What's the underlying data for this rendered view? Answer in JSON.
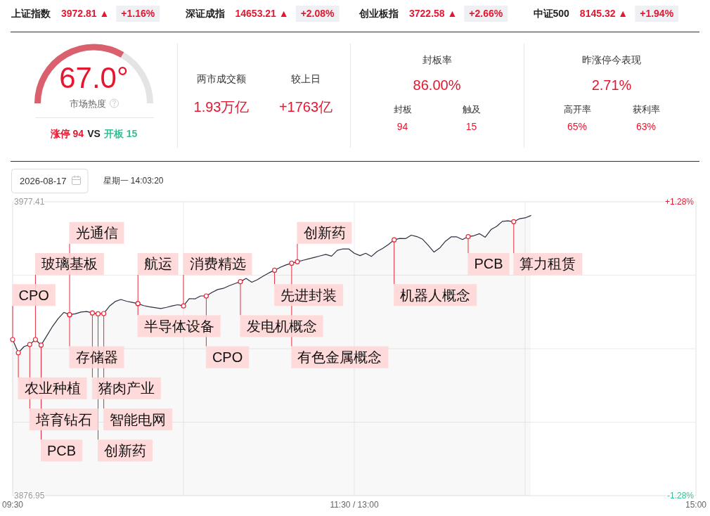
{
  "chart_data": [
    {
      "type": "other",
      "annotations": [
        "上证指数",
        "3972.81 ▲",
        "+1.16%",
        "深证成指",
        "14653.21 ▲",
        "+2.08%",
        "创业板指",
        "3722.58 ▲",
        "+2.66%",
        "中证500",
        "8145.32 ▲",
        "+1.94%"
      ]
    },
    {
      "type": "donut",
      "categories": [
        null,
        null
      ],
      "values": [
        67,
        33
      ],
      "colors": [
        "#d9606c",
        "#e4e4e4"
      ],
      "annotations": [
        "67.0°",
        "市场热度",
        "涨停 94",
        "VS",
        "开板 15"
      ]
    },
    {
      "type": "other",
      "annotations": [
        "两市成交额",
        "1.93万亿",
        "较上日",
        "+1763亿"
      ]
    },
    {
      "type": "other",
      "annotations": [
        "封板率",
        "86.00%",
        "封板",
        "94",
        "触及",
        "15"
      ]
    },
    {
      "type": "other",
      "annotations": [
        "昨涨停今表现",
        "2.71%",
        "高开率",
        "65%",
        "获利率",
        "63%"
      ]
    },
    {
      "type": "area",
      "grid": true,
      "categories": [
        "09:30",
        null,
        null,
        null,
        null,
        null,
        null,
        null,
        null,
        null,
        null,
        null,
        null,
        null,
        null,
        null,
        null,
        null,
        null,
        null,
        null,
        null,
        null,
        null,
        null,
        null,
        null,
        null,
        null,
        null,
        null,
        null,
        null,
        null,
        null,
        null,
        null,
        null,
        null,
        null,
        null,
        null,
        null,
        null,
        null,
        null,
        null,
        null,
        null,
        null,
        null,
        null,
        null,
        null,
        null,
        null,
        null,
        null,
        null,
        null,
        "11:30 / 13:00",
        null,
        null,
        null,
        null,
        null,
        null,
        null,
        null,
        null,
        null,
        null,
        null,
        null,
        null,
        null,
        null,
        null,
        null,
        null,
        null,
        null,
        null,
        null,
        null,
        null,
        null,
        null,
        null,
        null,
        null,
        null,
        null,
        null,
        null,
        null,
        null,
        null,
        null,
        null,
        null,
        null,
        null,
        null,
        null,
        null,
        null,
        null,
        null,
        null,
        null,
        null,
        null,
        null,
        null,
        null,
        null,
        null,
        null,
        null,
        "15:00"
      ],
      "ylim": [
        3876.95,
        3977.41
      ],
      "yticks": [
        3876.95,
        {
          "value": 3902.07,
          "label": null
        },
        {
          "value": 3927.18,
          "label": null
        },
        {
          "value": 3952.3,
          "label": null
        },
        3977.41
      ],
      "y2lim": [
        -1.28,
        1.28
      ],
      "y2ticks": [
        {
          "value": -1.28,
          "label": "-1.28%"
        },
        {
          "value": 1.28,
          "label": "+1.28%"
        }
      ],
      "series": [
        {
          "type": "area",
          "color": "#2e2e40",
          "values": [
            3930.3,
            3925.8,
            3927.9,
            3928.6,
            3930.3,
            3928.4,
            3931.6,
            3934.8,
            3937.5,
            3939.6,
            3938.8,
            3939.1,
            3939.7,
            3939.9,
            3939.4,
            3939.1,
            3939.2,
            3941.7,
            3943.3,
            3944.0,
            3943.4,
            3943.0,
            3942.6,
            3941.9,
            3941.5,
            3941.2,
            3940.9,
            3941.3,
            3941.8,
            3942.2,
            3941.8,
            3944.3,
            3944.2,
            3945.2,
            3945.2,
            3946.4,
            3947.4,
            3947.8,
            3948.7,
            3949.4,
            3950.1,
            3951.2,
            3949.9,
            3950.8,
            3952.0,
            3953.1,
            3954.0,
            3955.0,
            3955.8,
            3956.4,
            3956.9,
            3957.4,
            3957.9,
            3958.4,
            3958.9,
            3959.4,
            3958.8,
            3960.8,
            3961.3,
            3961.3,
            3959.8,
            3959.0,
            3959.8,
            3958.7,
            3960.4,
            3961.5,
            3962.8,
            3964.4,
            3964.9,
            3964.8,
            3966.0,
            3965.5,
            3964.6,
            3962.5,
            3960.2,
            3961.6,
            3963.9,
            3965.4,
            3965.4,
            3964.5,
            3965.5,
            3965.8,
            3966.5,
            3965.3,
            3967.9,
            3969.0,
            3970.7,
            3970.9,
            3970.6,
            3971.6,
            3971.9,
            3972.7,
            null,
            null,
            null,
            null,
            null,
            null,
            null,
            null,
            null,
            null,
            null,
            null,
            null,
            null,
            null,
            null,
            null,
            null,
            null,
            null,
            null,
            null,
            null,
            null,
            null,
            null,
            null,
            null,
            null
          ]
        },
        {
          "type": "scatter",
          "color": "#e8283a",
          "marker": "circle",
          "values": [
            3930.3,
            3925.8,
            null,
            3928.6,
            3930.3,
            3928.4,
            null,
            null,
            null,
            null,
            3938.8,
            null,
            null,
            null,
            3939.4,
            3939.1,
            3939.2,
            null,
            null,
            null,
            null,
            null,
            3942.6,
            null,
            null,
            null,
            null,
            null,
            null,
            null,
            3941.8,
            null,
            null,
            null,
            3945.2,
            null,
            null,
            null,
            null,
            null,
            3950.1,
            null,
            null,
            null,
            null,
            null,
            3954.0,
            null,
            null,
            3956.4,
            3956.9,
            null,
            null,
            null,
            null,
            null,
            null,
            null,
            null,
            null,
            null,
            null,
            null,
            null,
            null,
            null,
            null,
            3964.4,
            null,
            null,
            null,
            null,
            null,
            null,
            null,
            null,
            null,
            null,
            null,
            null,
            3965.5,
            null,
            null,
            null,
            null,
            null,
            null,
            null,
            3970.6,
            null,
            null,
            null,
            null,
            null,
            null,
            null,
            null,
            null,
            null,
            null,
            null,
            null,
            null,
            null,
            null,
            null,
            null,
            null,
            null,
            null,
            null,
            null,
            null,
            null,
            null,
            null,
            null,
            null,
            null,
            null,
            null
          ],
          "value_labels": [
            "CPO",
            "农业种植",
            null,
            "培育钻石",
            "玻璃基板",
            "PCB",
            null,
            null,
            null,
            null,
            "存储器",
            null,
            null,
            null,
            "猪肉产业",
            "创新药",
            "智能电网",
            null,
            null,
            null,
            null,
            null,
            "半导体设备",
            null,
            null,
            null,
            null,
            null,
            null,
            null,
            "消费精选",
            null,
            null,
            null,
            "CPO",
            null,
            null,
            null,
            null,
            null,
            "发电机概念",
            null,
            null,
            null,
            null,
            null,
            "先进封装",
            null,
            null,
            "有色金属概念",
            "创新药",
            null,
            null,
            null,
            null,
            null,
            null,
            null,
            null,
            null,
            null,
            null,
            null,
            null,
            null,
            null,
            null,
            "机器人概念",
            null,
            null,
            null,
            null,
            null,
            null,
            null,
            null,
            null,
            null,
            null,
            null,
            "PCB",
            null,
            null,
            null,
            null,
            null,
            null,
            null,
            "算力租赁",
            null,
            null,
            null,
            null,
            null,
            null,
            null,
            null,
            null,
            null,
            null,
            null,
            null,
            null,
            null,
            null,
            null,
            null,
            null,
            null,
            null,
            null,
            null,
            null,
            null,
            null,
            null,
            null,
            null,
            null,
            null,
            null
          ]
        },
        {
          "type": "scatter",
          "color": "#e8283a",
          "marker": "circle",
          "values": [
            null,
            null,
            null,
            null,
            null,
            null,
            null,
            null,
            null,
            null,
            3938.8,
            null,
            null,
            null,
            null,
            null,
            null,
            null,
            null,
            null,
            null,
            null,
            3942.6,
            null,
            null,
            null,
            null,
            null,
            null,
            null,
            null,
            null,
            null,
            null,
            null,
            null,
            null,
            null,
            null,
            null,
            null,
            null,
            null,
            null,
            null,
            null,
            null,
            null,
            null,
            null,
            null,
            null,
            null,
            null,
            null,
            null,
            null,
            null,
            null,
            null,
            null,
            null,
            null,
            null,
            null,
            null,
            null,
            null,
            null,
            null,
            null,
            null,
            null,
            null,
            null,
            null,
            null,
            null,
            null,
            null,
            null,
            null,
            null,
            null,
            null,
            null,
            null,
            null,
            null,
            null,
            null,
            null,
            null,
            null,
            null,
            null,
            null,
            null,
            null,
            null,
            null,
            null,
            null,
            null,
            null,
            null,
            null,
            null,
            null,
            null,
            null,
            null,
            null,
            null,
            null,
            null,
            null,
            null,
            null,
            null,
            null
          ],
          "value_labels": [
            null,
            null,
            null,
            null,
            null,
            null,
            null,
            null,
            null,
            null,
            "光通信",
            null,
            null,
            null,
            null,
            null,
            null,
            null,
            null,
            null,
            null,
            null,
            "航运",
            null,
            null,
            null,
            null,
            null,
            null,
            null,
            null,
            null,
            null,
            null,
            null,
            null,
            null,
            null,
            null,
            null,
            null,
            null,
            null,
            null,
            null,
            null,
            null,
            null,
            null,
            null,
            null,
            null,
            null,
            null,
            null,
            null,
            null,
            null,
            null,
            null,
            null,
            null,
            null,
            null,
            null,
            null,
            null,
            null,
            null,
            null,
            null,
            null,
            null,
            null,
            null,
            null,
            null,
            null,
            null,
            null,
            null,
            null,
            null,
            null,
            null,
            null,
            null,
            null,
            null,
            null,
            null,
            null,
            null,
            null,
            null,
            null,
            null,
            null,
            null,
            null,
            null,
            null,
            null,
            null,
            null,
            null,
            null,
            null,
            null,
            null,
            null,
            null,
            null,
            null,
            null,
            null,
            null,
            null,
            null,
            null,
            null
          ]
        }
      ],
      "annotations": [
        "2026-08-17",
        "星期一 14:03:20"
      ]
    }
  ]
}
